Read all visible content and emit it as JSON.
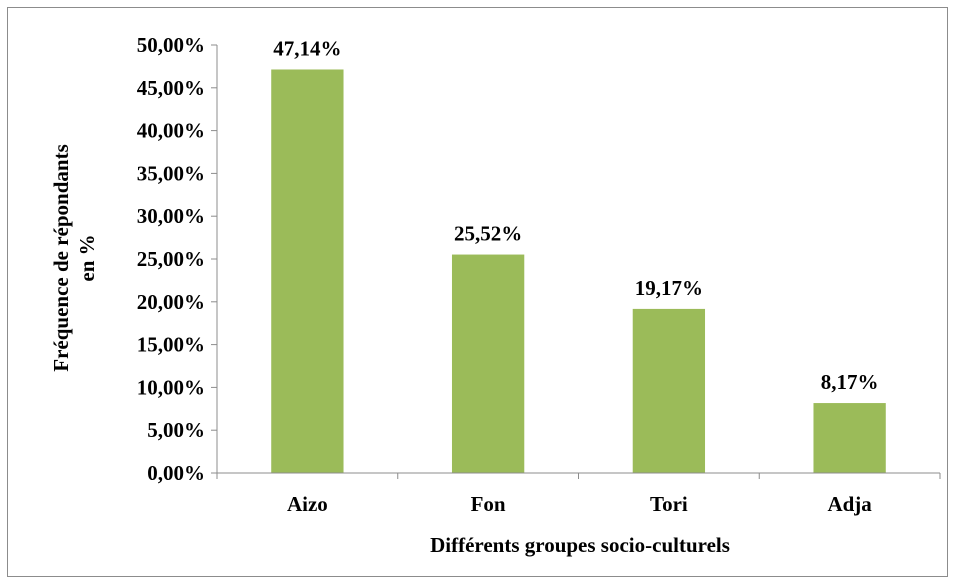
{
  "chart_data": {
    "type": "bar",
    "categories": [
      "Aizo",
      "Fon",
      "Tori",
      "Adja"
    ],
    "values": [
      47.14,
      25.52,
      19.17,
      8.17
    ],
    "data_labels": [
      "47,14%",
      "25,52%",
      "19,17%",
      "8,17%"
    ],
    "xlabel": "Différents groupes socio-culturels",
    "ylabel_lines": [
      "Fréquence de répondants",
      "en %"
    ],
    "ylim": [
      0,
      50
    ],
    "yticks": [
      0,
      5,
      10,
      15,
      20,
      25,
      30,
      35,
      40,
      45,
      50
    ],
    "ytick_labels": [
      "0,00%",
      "5,00%",
      "10,00%",
      "15,00%",
      "20,00%",
      "25,00%",
      "30,00%",
      "35,00%",
      "40,00%",
      "45,00%",
      "50,00%"
    ],
    "grid": false,
    "legend": "none",
    "bar_color": "#9bbb59"
  }
}
